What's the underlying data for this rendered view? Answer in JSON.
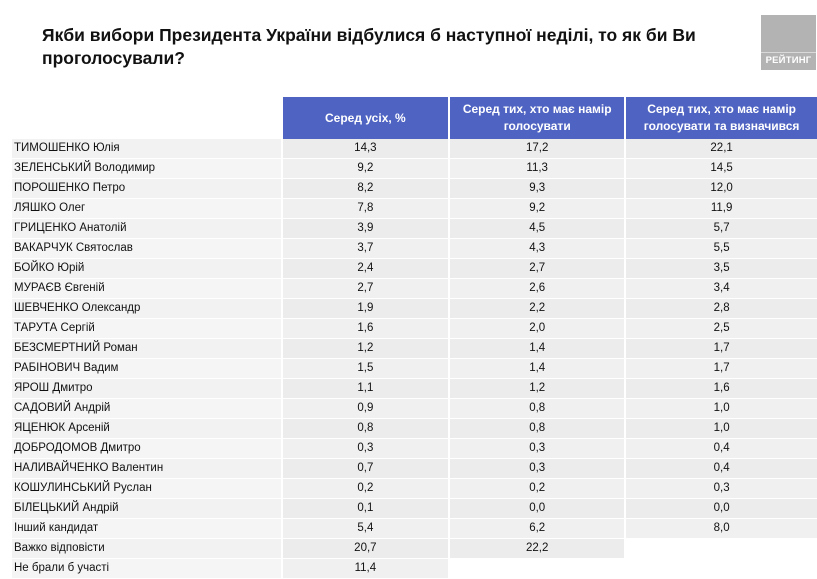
{
  "title": "Якби вибори Президента України відбулися б наступної неділі, то як би Ви проголосували?",
  "logo": {
    "text": "РЕЙТИНГ",
    "color": "#b3b3b3"
  },
  "table": {
    "header_color": "#4f63c2",
    "columns": [
      "Серед усіх, %",
      "Серед тих, хто має намір голосувати",
      "Серед тих, хто має намір голосувати та визначився"
    ],
    "rows": [
      {
        "name": "ТИМОШЕНКО Юлія",
        "v": [
          "14,3",
          "17,2",
          "22,1"
        ]
      },
      {
        "name": "ЗЕЛЕНСЬКИЙ Володимир",
        "v": [
          "9,2",
          "11,3",
          "14,5"
        ]
      },
      {
        "name": "ПОРОШЕНКО Петро",
        "v": [
          "8,2",
          "9,3",
          "12,0"
        ]
      },
      {
        "name": "ЛЯШКО Олег",
        "v": [
          "7,8",
          "9,2",
          "11,9"
        ]
      },
      {
        "name": "ГРИЦЕНКО Анатолій",
        "v": [
          "3,9",
          "4,5",
          "5,7"
        ]
      },
      {
        "name": "ВАКАРЧУК Святослав",
        "v": [
          "3,7",
          "4,3",
          "5,5"
        ]
      },
      {
        "name": "БОЙКО Юрій",
        "v": [
          "2,4",
          "2,7",
          "3,5"
        ]
      },
      {
        "name": "МУРАЄВ Євгеній",
        "v": [
          "2,7",
          "2,6",
          "3,4"
        ]
      },
      {
        "name": "ШЕВЧЕНКО Олександр",
        "v": [
          "1,9",
          "2,2",
          "2,8"
        ]
      },
      {
        "name": "ТАРУТА Сергій",
        "v": [
          "1,6",
          "2,0",
          "2,5"
        ]
      },
      {
        "name": "БЕЗСМЕРТНИЙ Роман",
        "v": [
          "1,2",
          "1,4",
          "1,7"
        ]
      },
      {
        "name": "РАБІНОВИЧ Вадим",
        "v": [
          "1,5",
          "1,4",
          "1,7"
        ]
      },
      {
        "name": "ЯРОШ Дмитро",
        "v": [
          "1,1",
          "1,2",
          "1,6"
        ]
      },
      {
        "name": "САДОВИЙ Андрій",
        "v": [
          "0,9",
          "0,8",
          "1,0"
        ]
      },
      {
        "name": "ЯЦЕНЮК Арсеній",
        "v": [
          "0,8",
          "0,8",
          "1,0"
        ]
      },
      {
        "name": "ДОБРОДОМОВ Дмитро",
        "v": [
          "0,3",
          "0,3",
          "0,4"
        ]
      },
      {
        "name": "НАЛИВАЙЧЕНКО Валентин",
        "v": [
          "0,7",
          "0,3",
          "0,4"
        ]
      },
      {
        "name": "КОШУЛИНСЬКИЙ Руслан",
        "v": [
          "0,2",
          "0,2",
          "0,3"
        ]
      },
      {
        "name": "БІЛЕЦЬКИЙ Андрій",
        "v": [
          "0,1",
          "0,0",
          "0,0"
        ]
      },
      {
        "name": "Інший кандидат",
        "v": [
          "5,4",
          "6,2",
          "8,0"
        ]
      },
      {
        "name": "Важко відповісти",
        "v": [
          "20,7",
          "22,2",
          null
        ]
      },
      {
        "name": "Не брали б участі",
        "v": [
          "11,4",
          null,
          null
        ]
      }
    ]
  }
}
